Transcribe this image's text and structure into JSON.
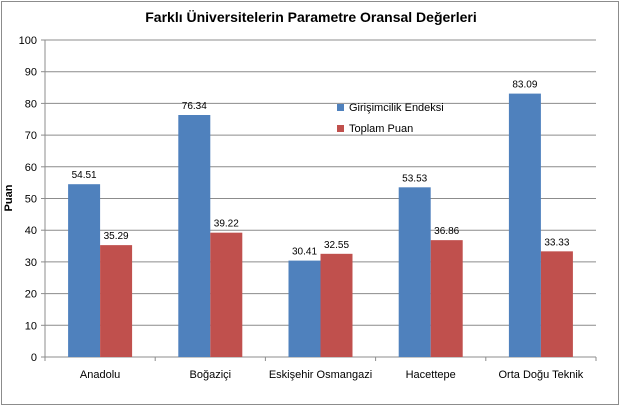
{
  "chart_data": {
    "type": "bar",
    "title": "Farklı Üniversitelerin Parametre Oransal Değerleri",
    "ylabel": "Puan",
    "xlabel": "",
    "ylim": [
      0,
      100
    ],
    "yticks": [
      0,
      10,
      20,
      30,
      40,
      50,
      60,
      70,
      80,
      90,
      100
    ],
    "grid": true,
    "legend": "right-inside-top",
    "categories": [
      "Anadolu",
      "Boğaziçi",
      "Eskişehir Osmangazi",
      "Hacettepe",
      "Orta Doğu Teknik"
    ],
    "series": [
      {
        "name": "Girişimcilik Endeksi",
        "color": "#4f81bd",
        "values": [
          54.51,
          76.34,
          30.41,
          53.53,
          83.09
        ]
      },
      {
        "name": "Toplam Puan",
        "color": "#c0504d",
        "values": [
          35.29,
          39.22,
          32.55,
          36.86,
          33.33
        ]
      }
    ]
  }
}
